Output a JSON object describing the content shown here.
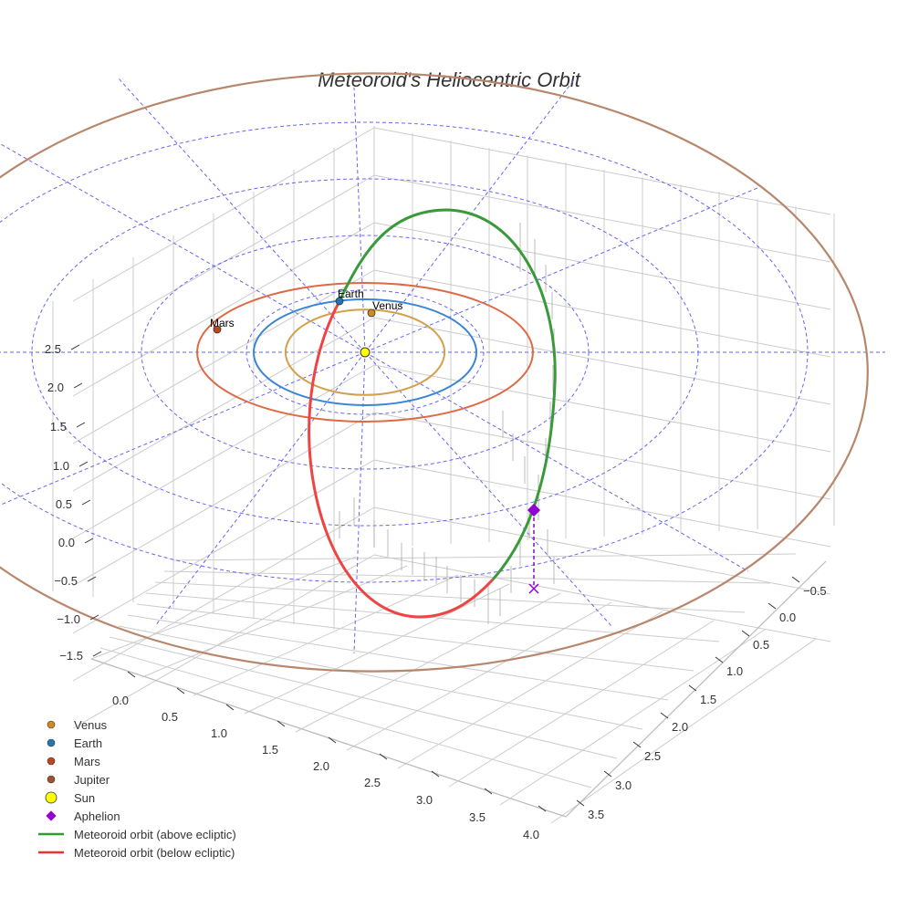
{
  "chart_data": {
    "type": "3d-orbit",
    "title": "Meteoroid's Heliocentric Orbit",
    "colors": {
      "venus_orbit": "#d4a04a",
      "earth_orbit": "#3a86d4",
      "mars_orbit": "#dd6a45",
      "jupiter_orbit": "#b8866a",
      "meteoroid_above": "#3a9a3a",
      "meteoroid_below": "#ee4444",
      "aphelion": "#9400d3",
      "grid_dashed": "#6666ee",
      "box_grid": "#cccccc",
      "sun_fill": "#ffff00",
      "venus_marker": "#d08a20",
      "earth_marker": "#1f77b4",
      "mars_marker": "#c0461b",
      "jupiter_marker": "#a0522d"
    },
    "planets": [
      {
        "name": "Venus",
        "label": "Venus",
        "orbit_radius_au": 0.72
      },
      {
        "name": "Earth",
        "label": "Earth",
        "orbit_radius_au": 1.0
      },
      {
        "name": "Mars",
        "label": "Mars",
        "orbit_radius_au": 1.52
      },
      {
        "name": "Jupiter",
        "label": "",
        "orbit_radius_au": 5.2
      }
    ],
    "z_axis_ticks": [
      "2.5",
      "2.0",
      "1.5",
      "1.0",
      "0.5",
      "0.0",
      "−0.5",
      "−1.0",
      "−1.5"
    ],
    "x_axis_ticks": [
      "0.0",
      "0.5",
      "1.0",
      "1.5",
      "2.0",
      "2.5",
      "3.0",
      "3.5",
      "4.0"
    ],
    "y_axis_ticks": [
      "−0.5",
      "0.0",
      "0.5",
      "1.0",
      "1.5",
      "2.0",
      "2.5",
      "3.0",
      "3.5"
    ],
    "legend": [
      {
        "label": "Venus",
        "kind": "dot",
        "color": "#d08a20"
      },
      {
        "label": "Earth",
        "kind": "dot",
        "color": "#1f77b4"
      },
      {
        "label": "Mars",
        "kind": "dot",
        "color": "#c0461b"
      },
      {
        "label": "Jupiter",
        "kind": "dot",
        "color": "#a0522d"
      },
      {
        "label": "Sun",
        "kind": "sun",
        "color": "#ffff00"
      },
      {
        "label": "Aphelion",
        "kind": "diamond",
        "color": "#9400d3"
      },
      {
        "label": "Meteoroid orbit (above ecliptic)",
        "kind": "line",
        "color": "#2ca02c"
      },
      {
        "label": "Meteoroid orbit (below ecliptic)",
        "kind": "line",
        "color": "#ee3333"
      }
    ]
  }
}
